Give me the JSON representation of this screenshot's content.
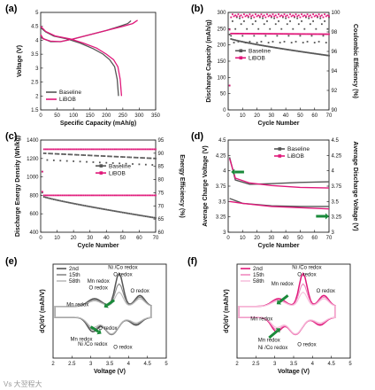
{
  "colors": {
    "baseline": "#555555",
    "libob": "#e0187a",
    "arrow": "#1a8a3a",
    "gray2": "#888888",
    "gray3": "#bbbbbb",
    "pink2": "#f08ac0",
    "pink3": "#f7c1dd"
  },
  "watermark": "Vs 大翌程大",
  "chart_data": [
    {
      "id": "a",
      "type": "line",
      "panel_label": "(a)",
      "xlabel": "Specific Capacity (mAh/g)",
      "ylabel": "Voltage (V)",
      "xlim": [
        0,
        350
      ],
      "ylim": [
        1.5,
        5.0
      ],
      "xticks": [
        0,
        50,
        100,
        150,
        200,
        250,
        300,
        350
      ],
      "yticks": [
        1.5,
        2.0,
        2.5,
        3.0,
        3.5,
        4.0,
        4.5,
        5.0
      ],
      "legend_position": "bottom-left",
      "series": [
        {
          "name": "Baseline",
          "color_key": "baseline",
          "charge": [
            [
              0,
              4.1
            ],
            [
              10,
              4.05
            ],
            [
              30,
              3.95
            ],
            [
              60,
              3.95
            ],
            [
              100,
              4.05
            ],
            [
              150,
              4.2
            ],
            [
              200,
              4.35
            ],
            [
              240,
              4.5
            ],
            [
              265,
              4.6
            ],
            [
              275,
              4.7
            ]
          ],
          "discharge": [
            [
              0,
              4.45
            ],
            [
              15,
              4.3
            ],
            [
              40,
              4.15
            ],
            [
              80,
              4.05
            ],
            [
              120,
              3.9
            ],
            [
              160,
              3.7
            ],
            [
              190,
              3.5
            ],
            [
              210,
              3.3
            ],
            [
              225,
              3.05
            ],
            [
              233,
              2.6
            ],
            [
              237,
              2.0
            ]
          ]
        },
        {
          "name": "LiBOB",
          "color_key": "libob",
          "charge": [
            [
              0,
              4.2
            ],
            [
              8,
              4.05
            ],
            [
              30,
              3.97
            ],
            [
              60,
              3.95
            ],
            [
              100,
              4.05
            ],
            [
              150,
              4.2
            ],
            [
              200,
              4.35
            ],
            [
              250,
              4.5
            ],
            [
              280,
              4.6
            ],
            [
              295,
              4.72
            ]
          ],
          "discharge": [
            [
              0,
              4.5
            ],
            [
              15,
              4.32
            ],
            [
              45,
              4.15
            ],
            [
              90,
              4.05
            ],
            [
              130,
              3.9
            ],
            [
              170,
              3.72
            ],
            [
              200,
              3.5
            ],
            [
              222,
              3.3
            ],
            [
              235,
              3.05
            ],
            [
              242,
              2.6
            ],
            [
              246,
              2.0
            ]
          ]
        }
      ]
    },
    {
      "id": "b",
      "type": "scatter",
      "panel_label": "(b)",
      "xlabel": "Cycle Number",
      "ylabel": "Discharge Capacity (mAh/g)",
      "y2label": "Coulombic Efficiency (%)",
      "xlim": [
        0,
        70
      ],
      "ylim": [
        0,
        300
      ],
      "y2lim": [
        90,
        100
      ],
      "xticks": [
        0,
        10,
        20,
        30,
        40,
        50,
        60,
        70
      ],
      "yticks": [
        0,
        50,
        100,
        150,
        200,
        250,
        300
      ],
      "y2ticks": [
        90,
        92,
        94,
        96,
        98,
        100
      ],
      "legend_position": "center-left",
      "series": [
        {
          "name": "Baseline",
          "color_key": "baseline",
          "capacity_start": 220,
          "capacity_end": 167,
          "efficiency": [
            99.4,
            98.8,
            97.6,
            99.1,
            96.9,
            98.3,
            99.5,
            97.0
          ]
        },
        {
          "name": "LiBOB",
          "color_key": "libob",
          "capacity_start": 235,
          "capacity_end": 233,
          "efficiency": [
            99.6,
            99.7,
            99.5,
            99.8,
            99.6,
            99.7,
            99.6,
            99.8
          ]
        }
      ]
    },
    {
      "id": "c",
      "type": "scatter",
      "panel_label": "(c)",
      "xlabel": "Cycle Number",
      "ylabel": "Discharge Energy Density (Wh/kg)",
      "y2label": "Energy Efficiency (%)",
      "xlim": [
        0,
        70
      ],
      "ylim": [
        400,
        1400
      ],
      "y2lim": [
        60,
        95
      ],
      "xticks": [
        0,
        10,
        20,
        30,
        40,
        50,
        60,
        70
      ],
      "yticks": [
        400,
        600,
        800,
        1000,
        1200,
        1400
      ],
      "y2ticks": [
        60,
        65,
        70,
        75,
        80,
        85,
        90,
        95
      ],
      "legend_position": "center-right",
      "series": [
        {
          "name": "Baseline",
          "color_key": "baseline",
          "energy_start": 790,
          "energy_end": 555,
          "efficiency_start": 90,
          "efficiency_end": 88
        },
        {
          "name": "LiBOB",
          "color_key": "libob",
          "energy_start": 800,
          "energy_end": 800,
          "efficiency_start": 91.5,
          "efficiency_end": 91.5
        }
      ]
    },
    {
      "id": "d",
      "type": "line",
      "panel_label": "(d)",
      "xlabel": "Cycle Number",
      "ylabel": "Average Charge Voltage (V)",
      "y2label": "Average Discharge Voltage (V)",
      "xlim": [
        0,
        70
      ],
      "ylim": [
        3.0,
        4.5
      ],
      "y2lim": [
        3.0,
        4.5
      ],
      "xticks": [
        0,
        10,
        20,
        30,
        40,
        50,
        60,
        70
      ],
      "yticks": [
        3.0,
        3.25,
        3.5,
        3.75,
        4.0,
        4.25,
        4.5
      ],
      "y2ticks": [
        3.0,
        3.25,
        3.5,
        3.75,
        4.0,
        4.25,
        4.5
      ],
      "legend_position": "top-right",
      "series": [
        {
          "name": "Baseline",
          "color_key": "baseline",
          "charge": [
            [
              1,
              4.22
            ],
            [
              5,
              3.85
            ],
            [
              15,
              3.78
            ],
            [
              30,
              3.79
            ],
            [
              50,
              3.81
            ],
            [
              70,
              3.82
            ]
          ],
          "discharge": [
            [
              1,
              3.55
            ],
            [
              10,
              3.47
            ],
            [
              30,
              3.43
            ],
            [
              50,
              3.42
            ],
            [
              70,
              3.42
            ]
          ]
        },
        {
          "name": "LiBOB",
          "color_key": "libob",
          "charge": [
            [
              1,
              4.2
            ],
            [
              5,
              3.88
            ],
            [
              15,
              3.8
            ],
            [
              30,
              3.76
            ],
            [
              50,
              3.73
            ],
            [
              70,
              3.72
            ]
          ],
          "discharge": [
            [
              1,
              3.5
            ],
            [
              10,
              3.47
            ],
            [
              30,
              3.42
            ],
            [
              50,
              3.4
            ],
            [
              70,
              3.38
            ]
          ]
        }
      ]
    },
    {
      "id": "e",
      "type": "line",
      "panel_label": "(e)",
      "xlabel": "Voltage (V)",
      "ylabel": "dQ/dV (mAh/V)",
      "xlim": [
        2.0,
        5.0
      ],
      "ylim": [
        -1.5,
        1.5
      ],
      "xticks": [
        2.0,
        2.5,
        3.0,
        3.5,
        4.0,
        4.5,
        5.0
      ],
      "legend_position": "top-left",
      "legend": [
        "2nd",
        "15th",
        "58th"
      ],
      "annotations": [
        "Ni /Co redox",
        "O redox",
        "Mn redox",
        "O redox",
        "O redox",
        "Mn redox",
        "Mn redox",
        "O redox",
        "Ni /Co redox",
        "O redox"
      ]
    },
    {
      "id": "f",
      "type": "line",
      "panel_label": "(f)",
      "xlabel": "Voltage (V)",
      "ylabel": "dQ/dV (mAh/V)",
      "xlim": [
        2.0,
        5.0
      ],
      "ylim": [
        -1.5,
        1.5
      ],
      "xticks": [
        2.0,
        2.5,
        3.0,
        3.5,
        4.0,
        4.5,
        5.0
      ],
      "legend_position": "top-left",
      "legend": [
        "2nd",
        "15th",
        "58th"
      ],
      "annotations": [
        "Ni /Co redox",
        "O redox",
        "Mn redox",
        "O redox",
        "Mn redox",
        "Mn redox",
        "O redox",
        "Ni /Co redox"
      ]
    }
  ]
}
